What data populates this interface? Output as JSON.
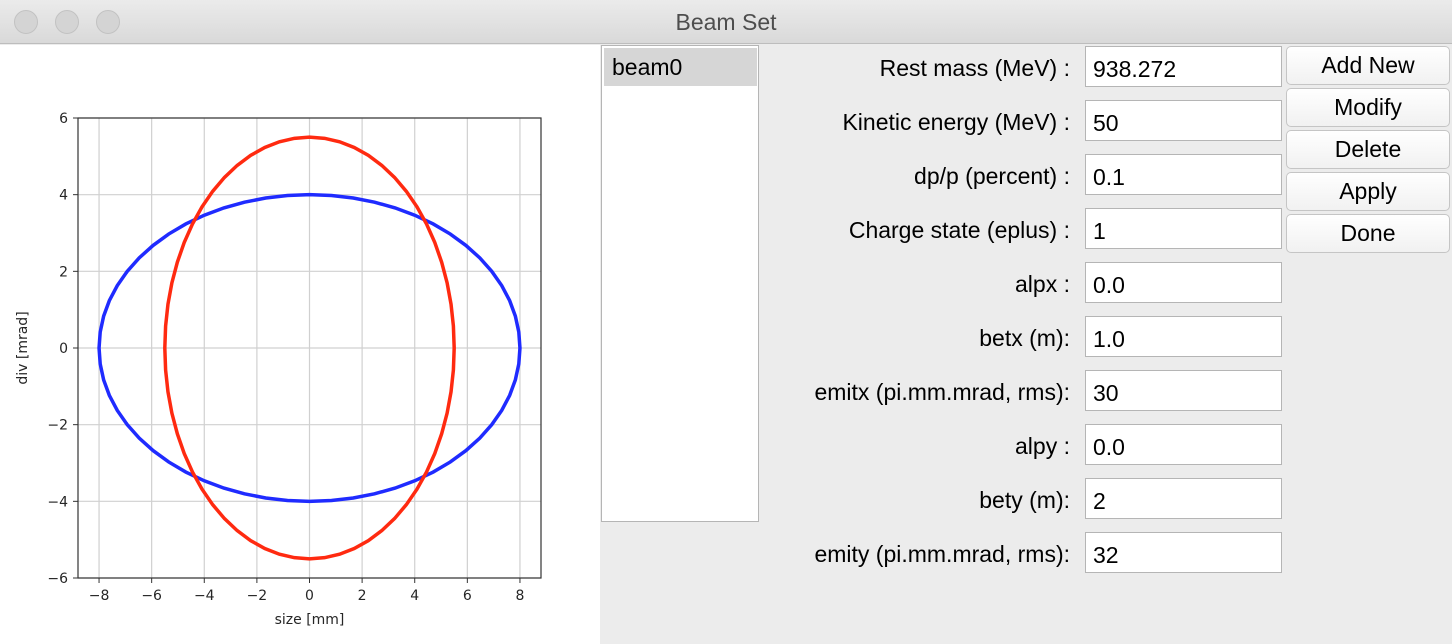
{
  "window": {
    "title": "Beam Set"
  },
  "beam_list": {
    "items": [
      "beam0"
    ]
  },
  "fields": [
    {
      "label": "Rest mass (MeV) :",
      "value": "938.272"
    },
    {
      "label": "Kinetic energy (MeV) :",
      "value": "50"
    },
    {
      "label": "dp/p (percent) :",
      "value": "0.1"
    },
    {
      "label": "Charge state (eplus) :",
      "value": "1"
    },
    {
      "label": "alpx :",
      "value": "0.0"
    },
    {
      "label": "betx (m):",
      "value": "1.0"
    },
    {
      "label": "emitx (pi.mm.mrad, rms):",
      "value": "30"
    },
    {
      "label": "alpy :",
      "value": "0.0"
    },
    {
      "label": "bety (m):",
      "value": "2"
    },
    {
      "label": "emity (pi.mm.mrad, rms):",
      "value": "32"
    }
  ],
  "buttons": {
    "add_new": "Add New",
    "modify": "Modify",
    "delete": "Delete",
    "apply": "Apply",
    "done": "Done"
  },
  "chart_data": {
    "type": "line",
    "xlabel": "size [mm]",
    "ylabel": "div [mrad]",
    "xlim": [
      -8.8,
      8.8
    ],
    "ylim": [
      -6,
      6
    ],
    "x_ticks": [
      -8,
      -6,
      -4,
      -2,
      0,
      2,
      4,
      6,
      8
    ],
    "y_ticks": [
      -6,
      -4,
      -2,
      0,
      2,
      4,
      6
    ],
    "x_tick_labels": [
      "−8",
      "−6",
      "−4",
      "−2",
      "0",
      "2",
      "4",
      "6",
      "8"
    ],
    "y_tick_labels": [
      "−6",
      "−4",
      "−2",
      "0",
      "2",
      "4",
      "6"
    ],
    "grid": true,
    "series": [
      {
        "color": "#1f2bff",
        "shape": "ellipse",
        "semi_axis_x": 8.0,
        "semi_axis_y": 4.0
      },
      {
        "color": "#ff2a10",
        "shape": "ellipse",
        "semi_axis_x": 5.5,
        "semi_axis_y": 5.5
      }
    ]
  }
}
